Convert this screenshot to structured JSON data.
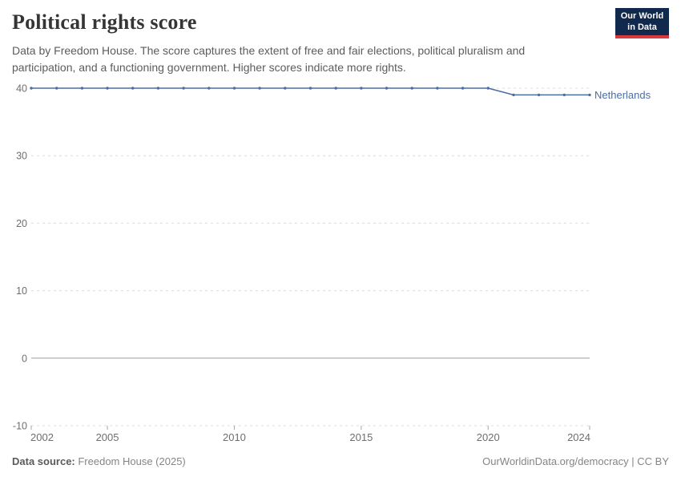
{
  "header": {
    "title": "Political rights score",
    "subtitle": "Data by Freedom House. The score captures the extent of free and fair elections, political pluralism and participation, and a functioning government. Higher scores indicate more rights.",
    "logo": {
      "line1": "Our World",
      "line2": "in Data"
    }
  },
  "chart_data": {
    "type": "line",
    "title": "Political rights score",
    "x": [
      2002,
      2003,
      2004,
      2005,
      2006,
      2007,
      2008,
      2009,
      2010,
      2011,
      2012,
      2013,
      2014,
      2015,
      2016,
      2017,
      2018,
      2019,
      2020,
      2021,
      2022,
      2023,
      2024
    ],
    "series": [
      {
        "name": "Netherlands",
        "values": [
          40,
          40,
          40,
          40,
          40,
          40,
          40,
          40,
          40,
          40,
          40,
          40,
          40,
          40,
          40,
          40,
          40,
          40,
          40,
          39,
          39,
          39,
          39
        ]
      }
    ],
    "x_ticks": [
      2002,
      2005,
      2010,
      2015,
      2020,
      2024
    ],
    "y_ticks": [
      40,
      30,
      20,
      10,
      0,
      -10
    ],
    "xlim": [
      2002,
      2024
    ],
    "ylim": [
      -10,
      40
    ],
    "grid": true,
    "legend_position": "line-end-label",
    "xlabel": "",
    "ylabel": ""
  },
  "footer": {
    "source_label": "Data source:",
    "source_value": " Freedom House (2025)",
    "link": "OurWorldinData.org/democracy | CC BY"
  },
  "colors": {
    "line": "#4d6da3",
    "grid": "#dcdcdc",
    "zero_axis": "#9e9e9e",
    "tick_mark": "#a5a5a5",
    "tick_text": "#6e6e6e",
    "logo_bg": "#12294e",
    "logo_accent": "#d93a3e"
  }
}
